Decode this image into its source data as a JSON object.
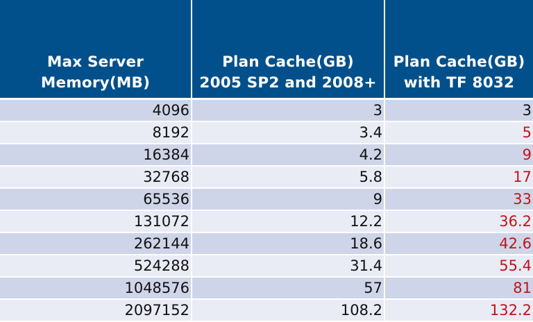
{
  "table": {
    "headers": [
      [
        "Max Server",
        "Memory(MB)"
      ],
      [
        "Plan Cache(GB)",
        "2005 SP2 and 2008+"
      ],
      [
        "Plan Cache(GB)",
        "with TF 8032"
      ]
    ],
    "rows": [
      [
        "4096",
        "3",
        "3"
      ],
      [
        "8192",
        "3.4",
        "5"
      ],
      [
        "16384",
        "4.2",
        "9"
      ],
      [
        "32768",
        "5.8",
        "17"
      ],
      [
        "65536",
        "9",
        "33"
      ],
      [
        "131072",
        "12.2",
        "36.2"
      ],
      [
        "262144",
        "18.6",
        "42.6"
      ],
      [
        "524288",
        "31.4",
        "55.4"
      ],
      [
        "1048576",
        "57",
        "81"
      ],
      [
        "2097152",
        "108.2",
        "132.2"
      ]
    ],
    "highlight_rows_col3_from_index": 1,
    "colors": {
      "header_bg": "#01508b",
      "row_dark": "#cfd5e8",
      "row_light": "#e9ebf5",
      "highlight_text": "#c0141a"
    }
  }
}
